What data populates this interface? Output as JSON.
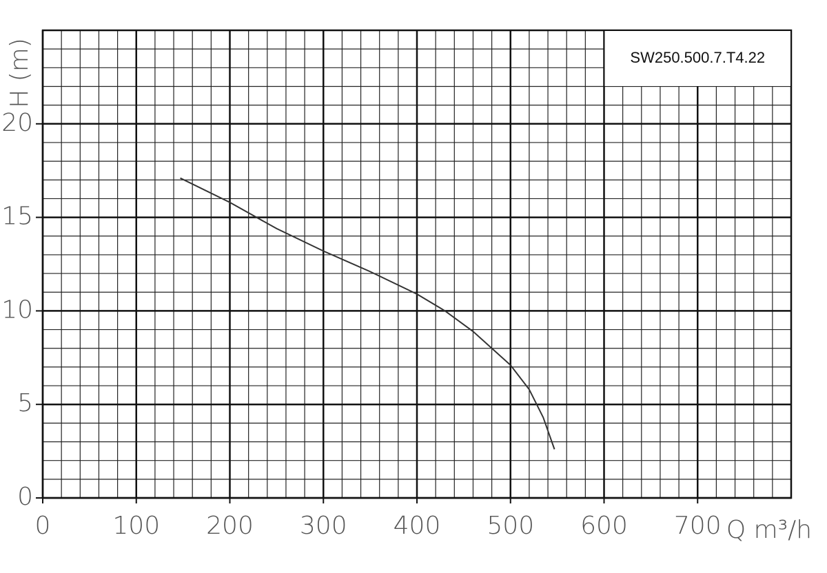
{
  "chart_data": {
    "type": "line",
    "title": "SW250.500.7.T4.22",
    "x_label": "Q m³/h",
    "y_label": "H (m)",
    "x": [
      147,
      200,
      250,
      300,
      350,
      400,
      430,
      460,
      500,
      520,
      535,
      547
    ],
    "series": [
      {
        "color": "#333333",
        "values": [
          17.1,
          15.8,
          14.4,
          13.2,
          12.1,
          10.9,
          10.0,
          8.9,
          7.1,
          5.8,
          4.3,
          2.6
        ]
      }
    ],
    "xlim": [
      0,
      800
    ],
    "ylim": [
      0,
      25
    ],
    "xticks": [
      0,
      100,
      200,
      300,
      400,
      500,
      600,
      700
    ],
    "yticks": [
      0,
      5,
      10,
      15,
      20
    ],
    "grid": true,
    "minor_xstep": 20,
    "minor_ystep": 1
  }
}
